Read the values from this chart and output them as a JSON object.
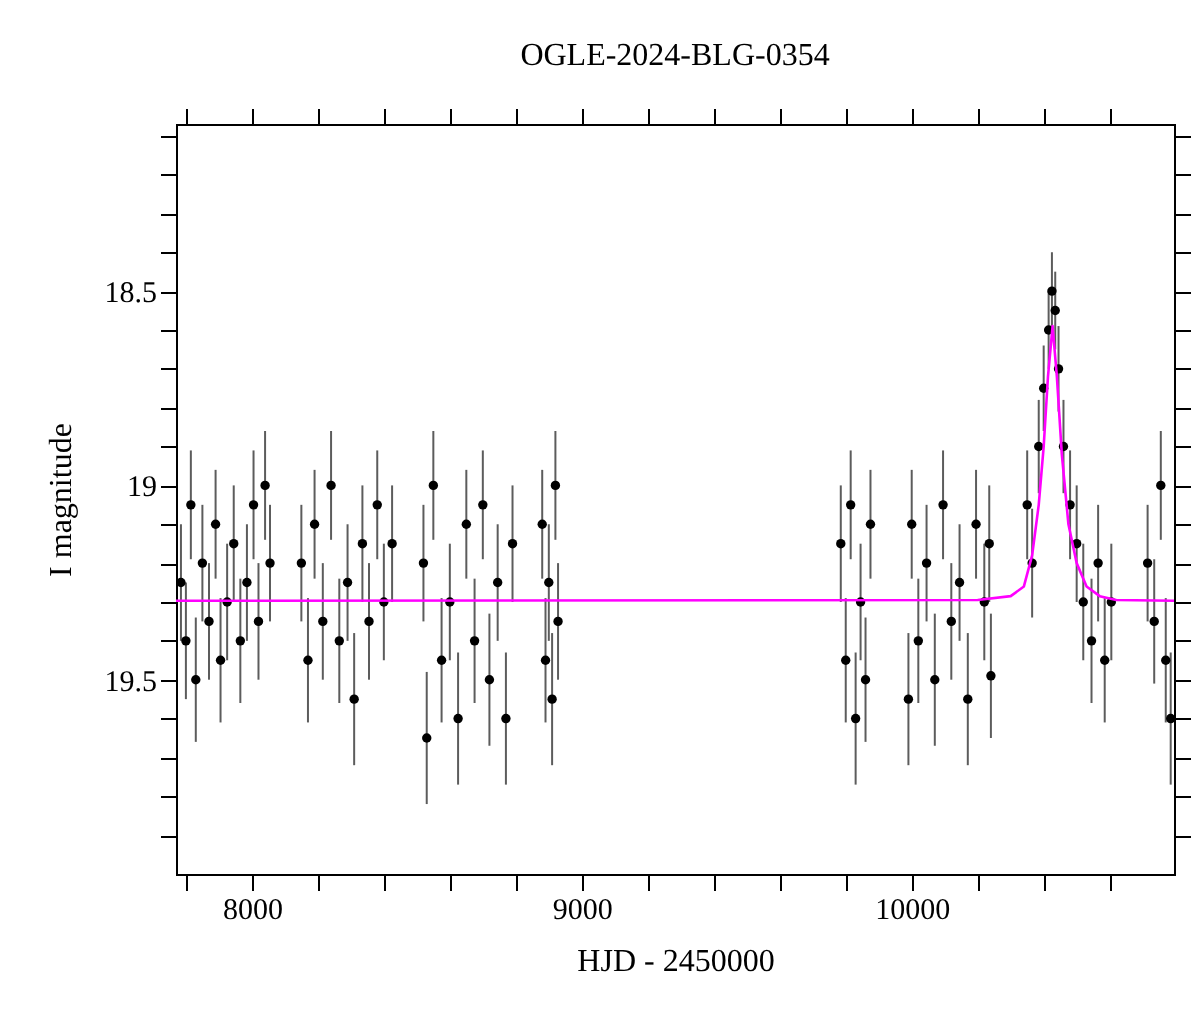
{
  "chart_data": {
    "type": "scatter",
    "title": "OGLE-2024-BLG-0354",
    "xlabel": "HJD - 2450000",
    "ylabel": "I magnitude",
    "xlim": [
      7770,
      10795
    ],
    "ylim": [
      20.0,
      18.07
    ],
    "xticks": [
      {
        "value": 7800,
        "label": null
      },
      8000,
      {
        "value": 8200,
        "label": null
      },
      {
        "value": 8400,
        "label": null
      },
      {
        "value": 8600,
        "label": null
      },
      {
        "value": 8800,
        "label": null
      },
      9000,
      {
        "value": 9200,
        "label": null
      },
      {
        "value": 9400,
        "label": null
      },
      {
        "value": 9600,
        "label": null
      },
      {
        "value": 9800,
        "label": null
      },
      10000,
      {
        "value": 10200,
        "label": null
      },
      {
        "value": 10400,
        "label": null
      },
      {
        "value": 10600,
        "label": null
      }
    ],
    "yticks": [
      {
        "value": 18.1,
        "label": null
      },
      {
        "value": 18.2,
        "label": null
      },
      {
        "value": 18.3,
        "label": null
      },
      {
        "value": 18.4,
        "label": null
      },
      18.5,
      {
        "value": 18.6,
        "label": null
      },
      {
        "value": 18.7,
        "label": null
      },
      {
        "value": 18.8,
        "label": null
      },
      {
        "value": 18.9,
        "label": null
      },
      19,
      {
        "value": 19.1,
        "label": null
      },
      {
        "value": 19.2,
        "label": null
      },
      {
        "value": 19.3,
        "label": null
      },
      {
        "value": 19.4,
        "label": null
      },
      19.5,
      {
        "value": 19.6,
        "label": null
      },
      {
        "value": 19.7,
        "label": null
      },
      {
        "value": 19.8,
        "label": null
      },
      {
        "value": 19.9,
        "label": null
      }
    ],
    "grid": false,
    "marker": "circle",
    "series": [
      {
        "color": "#000000",
        "x": [
          7785,
          7800,
          7815,
          7830,
          7850,
          7870,
          7890,
          7905,
          7925,
          7945,
          7965,
          7985,
          8005,
          8020,
          8040,
          8055,
          8150,
          8170,
          8190,
          8215,
          8240,
          8265,
          8290,
          8310,
          8335,
          8355,
          8380,
          8400,
          8425,
          8520,
          8530,
          8550,
          8575,
          8600,
          8625,
          8650,
          8675,
          8700,
          8720,
          8745,
          8770,
          8790,
          8880,
          8890,
          8900,
          8910,
          8920,
          8928,
          9785,
          9800,
          9815,
          9830,
          9845,
          9860,
          9875,
          9990,
          10000,
          10020,
          10045,
          10070,
          10095,
          10120,
          10145,
          10170,
          10195,
          10220,
          10235,
          10240,
          10350,
          10365,
          10385,
          10400,
          10415,
          10425,
          10435,
          10445,
          10460,
          10480,
          10500,
          10520,
          10545,
          10565,
          10585,
          10605,
          10715,
          10735,
          10755,
          10770,
          10785
        ],
        "values": [
          19.25,
          19.4,
          19.05,
          19.5,
          19.2,
          19.35,
          19.1,
          19.45,
          19.3,
          19.15,
          19.4,
          19.25,
          19.05,
          19.35,
          19.0,
          19.2,
          19.2,
          19.45,
          19.1,
          19.35,
          19.0,
          19.4,
          19.25,
          19.55,
          19.15,
          19.35,
          19.05,
          19.3,
          19.15,
          19.2,
          19.65,
          19.0,
          19.45,
          19.3,
          19.6,
          19.1,
          19.4,
          19.05,
          19.5,
          19.25,
          19.6,
          19.15,
          19.1,
          19.45,
          19.25,
          19.55,
          19.0,
          19.35,
          19.15,
          19.45,
          19.05,
          19.6,
          19.3,
          19.5,
          19.1,
          19.55,
          19.1,
          19.4,
          19.2,
          19.5,
          19.05,
          19.35,
          19.25,
          19.55,
          19.1,
          19.3,
          19.15,
          19.49,
          19.05,
          19.2,
          18.9,
          18.75,
          18.6,
          18.5,
          18.55,
          18.7,
          18.9,
          19.05,
          19.15,
          19.3,
          19.4,
          19.2,
          19.45,
          19.3,
          19.2,
          19.35,
          19.0,
          19.45,
          19.6
        ],
        "errors": [
          0.15,
          0.15,
          0.14,
          0.16,
          0.15,
          0.15,
          0.14,
          0.16,
          0.15,
          0.15,
          0.16,
          0.15,
          0.14,
          0.15,
          0.14,
          0.15,
          0.15,
          0.16,
          0.14,
          0.15,
          0.14,
          0.16,
          0.15,
          0.17,
          0.15,
          0.15,
          0.14,
          0.15,
          0.15,
          0.15,
          0.17,
          0.14,
          0.16,
          0.15,
          0.17,
          0.14,
          0.16,
          0.14,
          0.17,
          0.15,
          0.17,
          0.15,
          0.14,
          0.16,
          0.15,
          0.17,
          0.14,
          0.15,
          0.15,
          0.16,
          0.14,
          0.17,
          0.15,
          0.16,
          0.14,
          0.17,
          0.14,
          0.16,
          0.15,
          0.17,
          0.14,
          0.15,
          0.15,
          0.17,
          0.14,
          0.15,
          0.15,
          0.16,
          0.14,
          0.14,
          0.12,
          0.11,
          0.1,
          0.1,
          0.1,
          0.11,
          0.12,
          0.14,
          0.15,
          0.15,
          0.16,
          0.15,
          0.16,
          0.15,
          0.15,
          0.16,
          0.14,
          0.16,
          0.17
        ]
      },
      {
        "type": "line",
        "color": "#ff00ff",
        "marker": "none",
        "x": [
          7770,
          10200,
          10300,
          10340,
          10365,
          10385,
          10400,
          10413,
          10427,
          10440,
          10455,
          10475,
          10500,
          10530,
          10570,
          10620,
          10795
        ],
        "values": [
          19.297,
          19.295,
          19.285,
          19.26,
          19.18,
          19.05,
          18.9,
          18.72,
          18.59,
          18.72,
          18.92,
          19.1,
          19.2,
          19.26,
          19.285,
          19.295,
          19.297
        ]
      }
    ]
  }
}
